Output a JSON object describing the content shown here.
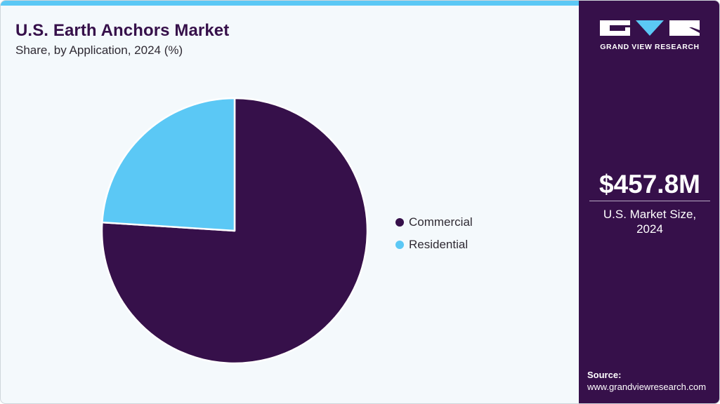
{
  "header": {
    "title": "U.S. Earth Anchors Market",
    "subtitle": "Share, by Application, 2024 (%)"
  },
  "colors": {
    "commercial": "#36104a",
    "residential": "#5bc8f5",
    "accent_bar": "#5bc8f5",
    "side_panel": "#36104a",
    "background": "#f4f9fc"
  },
  "legend": {
    "items": [
      {
        "label": "Commercial",
        "color": "#36104a"
      },
      {
        "label": "Residential",
        "color": "#5bc8f5"
      }
    ]
  },
  "side_panel": {
    "logo_text": "GRAND VIEW RESEARCH",
    "market_value": "$457.8M",
    "market_label_line1": "U.S. Market Size,",
    "market_label_line2": "2024",
    "source_label": "Source:",
    "source_url": "www.grandviewresearch.com"
  },
  "chart_data": {
    "type": "pie",
    "title": "U.S. Earth Anchors Market",
    "subtitle": "Share, by Application, 2024 (%)",
    "categories": [
      "Commercial",
      "Residential"
    ],
    "values": [
      76,
      24
    ],
    "colors": [
      "#36104a",
      "#5bc8f5"
    ],
    "start_angle": "12 o'clock; Commercial clockwise, Residential counter-clockwise",
    "legend_position": "right",
    "data_labels": false
  }
}
